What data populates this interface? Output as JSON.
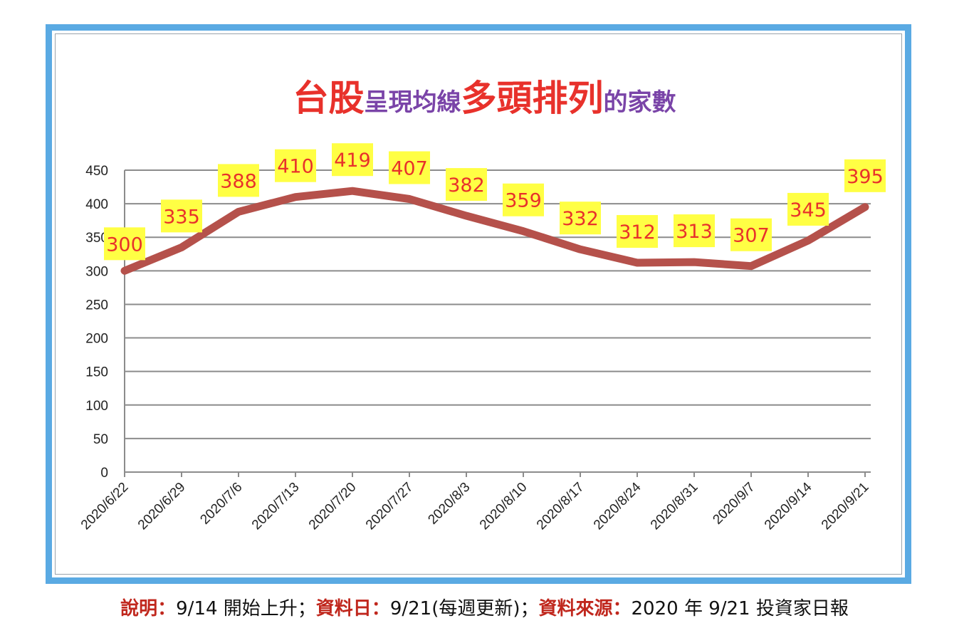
{
  "title": {
    "part1": "台股",
    "part2": "呈現均線",
    "part3": "多頭排列",
    "part4": "的家數"
  },
  "caption": {
    "label1": "說明：",
    "text1": "9/14 開始上升；",
    "label2": "資料日：",
    "text2": "9/21(每週更新)；",
    "label3": "資料來源：",
    "text3": "2020 年 9/21 投資家日報"
  },
  "colors": {
    "frame": "#5aaae3",
    "line": "#b5514b",
    "label_bg": "#ffff44",
    "label_text": "#e8312b",
    "title_red": "#e8312b",
    "title_purple": "#7a44a8",
    "grid": "#8c8c8c"
  },
  "chart_data": {
    "type": "line",
    "categories": [
      "2020/6/22",
      "2020/6/29",
      "2020/7/6",
      "2020/7/13",
      "2020/7/20",
      "2020/7/27",
      "2020/8/3",
      "2020/8/10",
      "2020/8/17",
      "2020/8/24",
      "2020/8/31",
      "2020/9/7",
      "2020/9/14",
      "2020/9/21"
    ],
    "series": [
      {
        "values": [
          300,
          335,
          388,
          410,
          419,
          407,
          382,
          359,
          332,
          312,
          313,
          307,
          345,
          395
        ]
      }
    ],
    "ylim": [
      0,
      450
    ],
    "yticks": [
      0,
      50,
      100,
      150,
      200,
      250,
      300,
      350,
      400,
      450
    ],
    "grid": true,
    "legend": "none",
    "data_labels": true
  }
}
